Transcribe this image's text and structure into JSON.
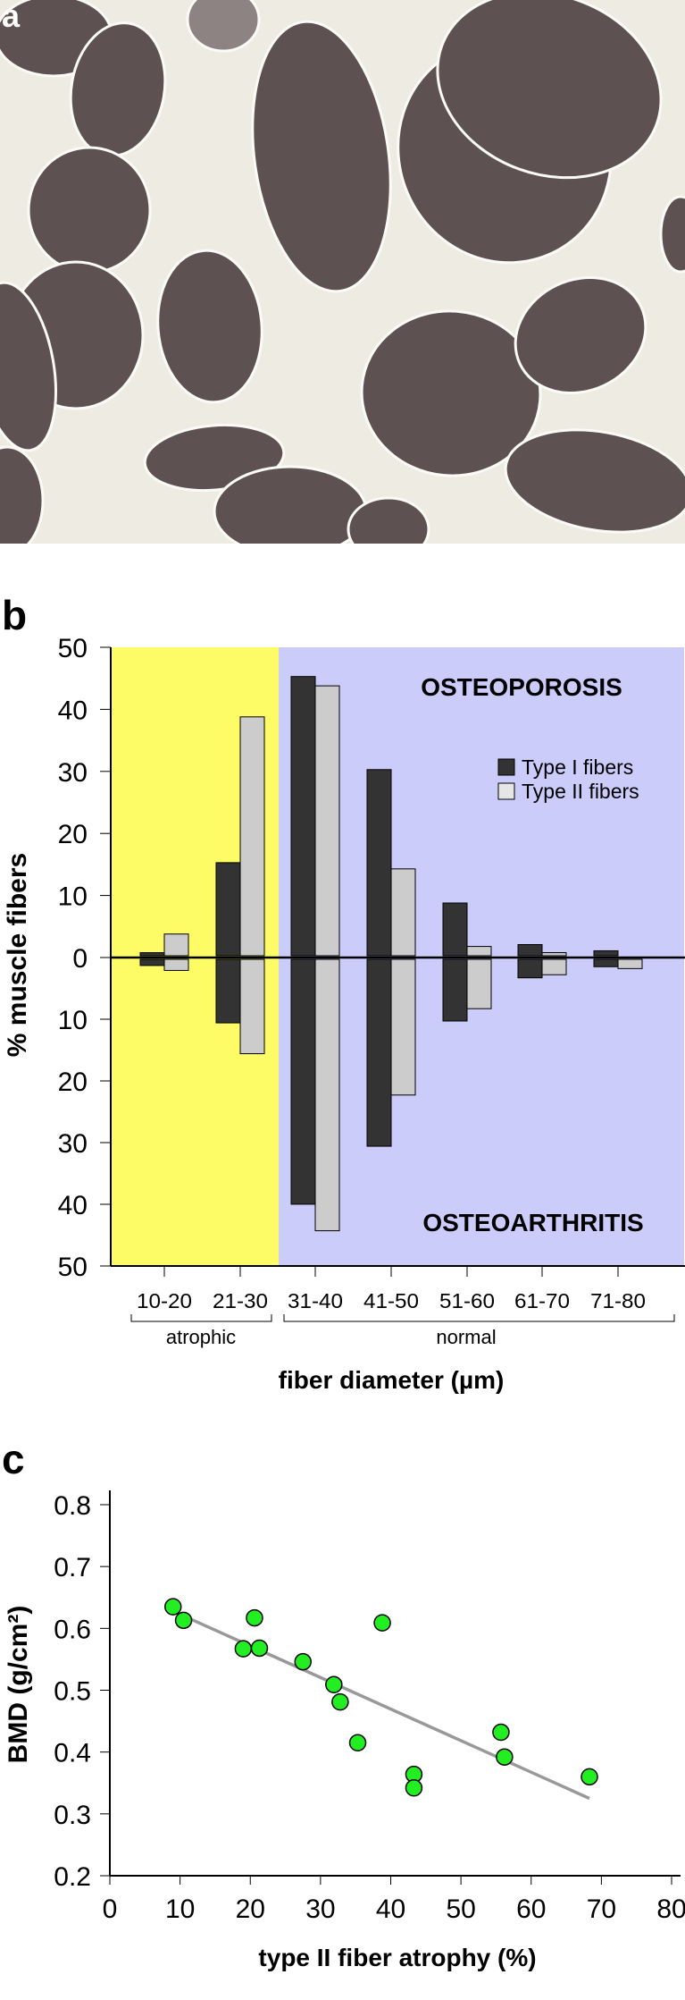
{
  "panel_a": {
    "label": "a"
  },
  "panel_b": {
    "label": "b"
  },
  "panel_c": {
    "label": "c"
  },
  "colors": {
    "atrophic_bg": "#fdfc66",
    "normal_bg": "#ccccfb",
    "type1": "#333333",
    "type2": "#cccccc",
    "points": "#22ee22",
    "regression": "#999999",
    "micro_bg": "#eeebe3",
    "fiber": "#5d5251"
  },
  "chart_data": [
    {
      "type": "bar",
      "title": "",
      "xlabel": "fiber diameter (µm)",
      "ylabel": "% muscle fibers",
      "categories": [
        "10-20",
        "21-30",
        "31-40",
        "41-50",
        "51-60",
        "61-70",
        "71-80"
      ],
      "yticks_top": [
        "50",
        "40",
        "30",
        "20",
        "10",
        "0"
      ],
      "yticks_bottom": [
        "10",
        "20",
        "30",
        "40",
        "50"
      ],
      "ylim": [
        -50,
        50
      ],
      "upper_group": "OSTEOPOROSIS",
      "lower_group": "OSTEOARTHRITIS",
      "region_labels": [
        "atrophic",
        "normal"
      ],
      "legend": [
        "Type I fibers",
        "Type II fibers"
      ],
      "legend_position": "top-right",
      "series": [
        {
          "name": "Type I fibers",
          "osteoporosis": [
            0.5,
            15,
            45,
            30,
            8.5,
            1.8,
            0.8
          ],
          "osteoarthritis": [
            1,
            10.3,
            39.7,
            30.3,
            10,
            3,
            1.2
          ]
        },
        {
          "name": "Type II fibers",
          "osteoporosis": [
            3.5,
            38.5,
            43.5,
            14,
            1.5,
            0.5,
            0
          ],
          "osteoarthritis": [
            1.8,
            15.3,
            44,
            22,
            8,
            2.5,
            1.5
          ]
        }
      ]
    },
    {
      "type": "scatter",
      "xlabel": "type II fiber atrophy (%)",
      "ylabel": "BMD (g/cm²)",
      "xlim": [
        0,
        80
      ],
      "ylim": [
        0.2,
        0.8
      ],
      "xticks": [
        "0",
        "10",
        "20",
        "30",
        "40",
        "50",
        "60",
        "70",
        "80"
      ],
      "yticks": [
        "0.8",
        "0.7",
        "0.6",
        "0.5",
        "0.4",
        "0.3",
        "0.2"
      ],
      "points": [
        [
          9,
          0.635
        ],
        [
          10.5,
          0.613
        ],
        [
          20.6,
          0.617
        ],
        [
          19,
          0.567
        ],
        [
          21.3,
          0.568
        ],
        [
          27.5,
          0.546
        ],
        [
          31.9,
          0.509
        ],
        [
          32.8,
          0.481
        ],
        [
          38.8,
          0.609
        ],
        [
          35.3,
          0.415
        ],
        [
          43.3,
          0.364
        ],
        [
          43.3,
          0.342
        ],
        [
          55.7,
          0.432
        ],
        [
          56.2,
          0.392
        ],
        [
          68.3,
          0.36
        ]
      ],
      "regression": [
        [
          11.5,
          0.615
        ],
        [
          68.3,
          0.325
        ]
      ],
      "grid": false
    }
  ]
}
